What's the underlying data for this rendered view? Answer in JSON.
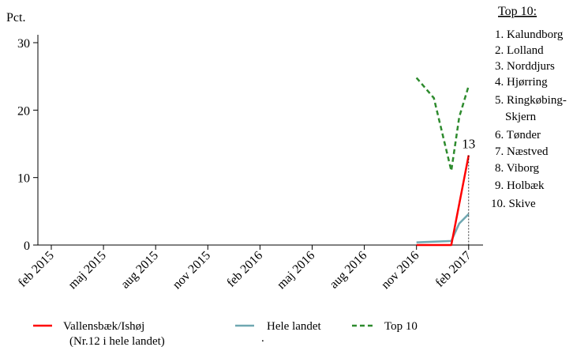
{
  "chart_data": {
    "type": "line",
    "ylabel": "Pct.",
    "ylim": [
      0,
      30
    ],
    "y_ticks": [
      "0",
      "10",
      "20",
      "30"
    ],
    "x_tick_labels": [
      "feb 2015",
      "maj 2015",
      "aug 2015",
      "nov 2015",
      "feb 2016",
      "maj 2016",
      "aug 2016",
      "nov 2016",
      "feb 2017"
    ],
    "series": [
      {
        "name": "Vallensbæk/Ishøj",
        "name_note": "(Nr.12 i hele landet)",
        "color": "#ff0000",
        "style": "solid",
        "points": [
          [
            "nov 2016",
            0
          ],
          [
            "dec 2016",
            0
          ],
          [
            "jan 2017",
            0
          ],
          [
            "feb 2017",
            13.3
          ]
        ]
      },
      {
        "name": "Hele landet",
        "color": "#6fa7b1",
        "style": "solid",
        "points": [
          [
            "nov 2016",
            0.4
          ],
          [
            "dec 2016",
            0.5
          ],
          [
            "jan 2017",
            0.6
          ],
          [
            "feb 2017",
            4.6
          ]
        ],
        "mid_points": [
          [
            "jan 2017",
            0.6
          ],
          [
            "jan/feb 2017",
            3.2
          ]
        ]
      },
      {
        "name": "Top 10",
        "color": "#2e8b2e",
        "style": "dashed",
        "points": [
          [
            "nov 2016",
            24.8
          ],
          [
            "dec 2016",
            21.8
          ],
          [
            "jan 2017",
            11.0
          ],
          [
            "jan/feb 2017",
            19.0
          ],
          [
            "feb 2017",
            23.6
          ]
        ]
      }
    ],
    "annotation": {
      "text": "13",
      "x": "feb 2017",
      "y": 13.3
    },
    "grid": false,
    "legend_position": "bottom"
  },
  "top10": {
    "title": "Top 10:",
    "items": [
      "1. Kalundborg",
      "2. Lolland",
      "3. Norddjurs",
      "4. Hjørring",
      "5. Ringkøbing-",
      "Skjern",
      "6. Tønder",
      "7. Næstved",
      "8. Viborg",
      "9. Holbæk",
      "10. Skive"
    ]
  },
  "legend_dot": "."
}
